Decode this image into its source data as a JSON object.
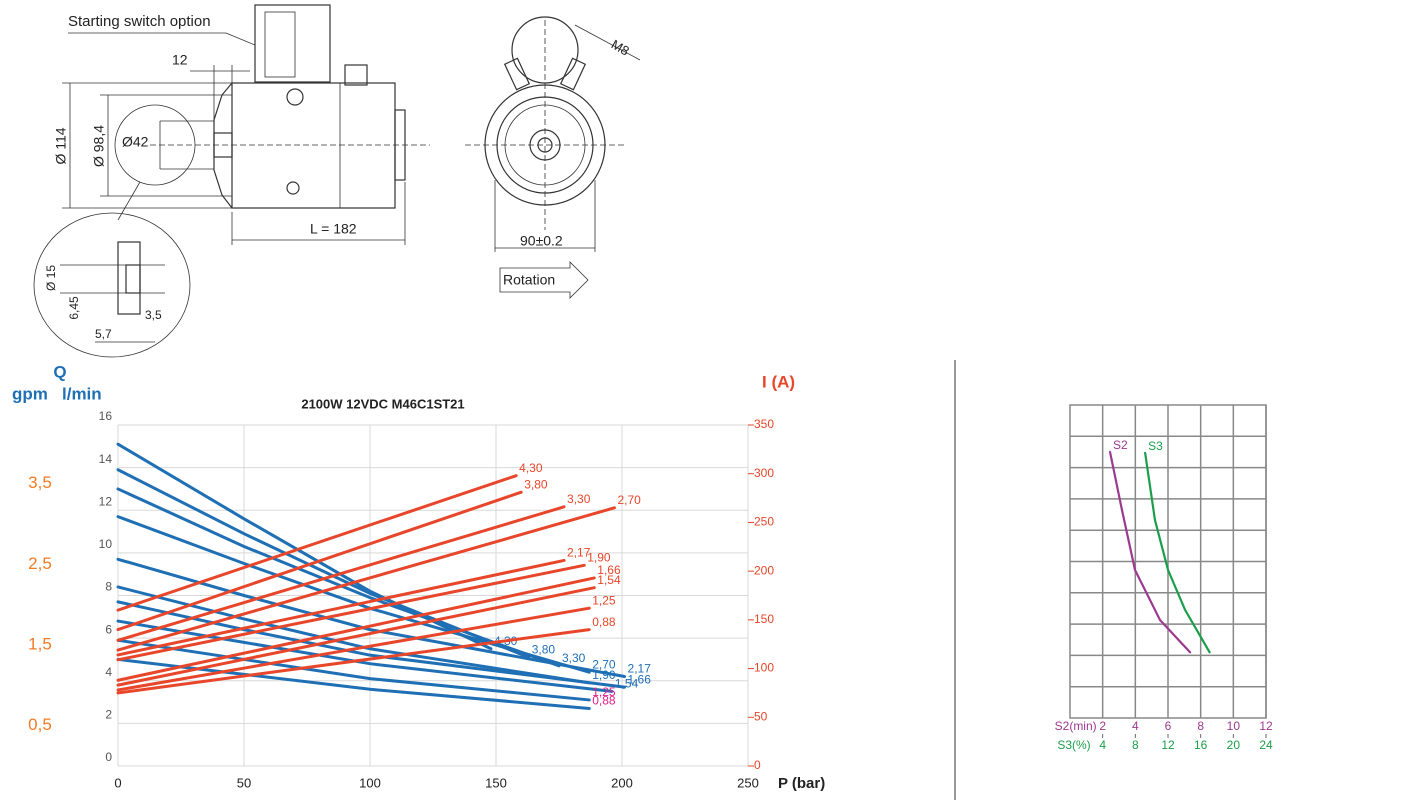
{
  "drawing": {
    "switch_label": "Starting switch option",
    "dim_12": "12",
    "dia_114": "Ø 114",
    "dia_98": "Ø 98,4",
    "dia_42": "Ø42",
    "length": "L = 182",
    "dia_15": "Ø 15",
    "dim_645": "6,45",
    "dim_57": "5,7",
    "dim_35": "3,5",
    "thread": "M8",
    "width": "90±0.2",
    "rotation": "Rotation"
  },
  "chart_data": [
    {
      "type": "line",
      "title": "2100W 12VDC M46C1ST21",
      "x_label": "P (bar)",
      "y_label_top": "Q",
      "y3_label": "gpm",
      "y_label": "l/min",
      "y2_label": "I (A)",
      "xlim": [
        0,
        250
      ],
      "xticks": [
        0,
        50,
        100,
        150,
        200,
        250
      ],
      "ylim": [
        0,
        16
      ],
      "yticks": [
        0,
        2,
        4,
        6,
        8,
        10,
        12,
        14,
        16
      ],
      "y2lim": [
        0,
        350
      ],
      "y2ticks": [
        0,
        50,
        100,
        150,
        200,
        250,
        300,
        350
      ],
      "y3lim": [
        0,
        4.227
      ],
      "y3ticks": [
        {
          "value": 0.5,
          "label": "0,5"
        },
        {
          "value": 1.5,
          "label": "1,5"
        },
        {
          "value": 2.5,
          "label": "2,5"
        },
        {
          "value": 3.5,
          "label": "3,5"
        }
      ],
      "grid": true,
      "series": [
        {
          "name": "4,30",
          "color": "#1f6fb5",
          "axis": "y",
          "x": [
            0,
            50,
            100,
            148
          ],
          "values": [
            15.1,
            11.6,
            8.2,
            5.5
          ]
        },
        {
          "name": "3,80",
          "color": "#1f6fb5",
          "axis": "y",
          "x": [
            0,
            50,
            100,
            163
          ],
          "values": [
            13.9,
            10.9,
            8.1,
            5.1
          ]
        },
        {
          "name": "3,30",
          "color": "#1f6fb5",
          "axis": "y",
          "x": [
            0,
            50,
            100,
            175
          ],
          "values": [
            13.0,
            10.3,
            7.9,
            4.7
          ]
        },
        {
          "name": "2,70",
          "color": "#1f6fb5",
          "axis": "y",
          "x": [
            0,
            50,
            100,
            187
          ],
          "values": [
            11.7,
            9.5,
            7.4,
            4.4
          ]
        },
        {
          "name": "2,17",
          "color": "#1f6fb5",
          "axis": "y",
          "x": [
            0,
            50,
            100,
            201
          ],
          "values": [
            9.7,
            8.0,
            6.4,
            4.2
          ]
        },
        {
          "name": "1,90",
          "color": "#1f6fb5",
          "axis": "y",
          "x": [
            0,
            50,
            100,
            187
          ],
          "values": [
            8.4,
            6.9,
            5.5,
            3.9
          ]
        },
        {
          "name": "1,66",
          "color": "#1f6fb5",
          "axis": "y",
          "x": [
            0,
            50,
            100,
            201
          ],
          "values": [
            7.7,
            6.4,
            5.2,
            3.7
          ]
        },
        {
          "name": "1,54",
          "color": "#1f6fb5",
          "axis": "y",
          "x": [
            0,
            50,
            100,
            196
          ],
          "values": [
            6.8,
            5.8,
            4.8,
            3.5
          ]
        },
        {
          "name": "1,25",
          "color": "#1f6fb5",
          "label_color": "#e0218a",
          "axis": "y",
          "x": [
            0,
            50,
            100,
            187
          ],
          "values": [
            5.9,
            5.0,
            4.1,
            3.1
          ]
        },
        {
          "name": "0,88",
          "color": "#1f6fb5",
          "label_color": "#e0218a",
          "axis": "y",
          "x": [
            0,
            50,
            100,
            187
          ],
          "values": [
            5.0,
            4.3,
            3.6,
            2.7
          ]
        },
        {
          "name": "4,30",
          "color": "#e8462a",
          "axis": "y2",
          "x": [
            0,
            158
          ],
          "values": [
            160,
            298
          ]
        },
        {
          "name": "3,80",
          "color": "#e8462a",
          "axis": "y2",
          "x": [
            0,
            160
          ],
          "values": [
            140,
            281
          ]
        },
        {
          "name": "3,30",
          "color": "#e8462a",
          "axis": "y2",
          "x": [
            0,
            177
          ],
          "values": [
            129,
            266
          ]
        },
        {
          "name": "2,70",
          "color": "#e8462a",
          "axis": "y2",
          "x": [
            0,
            197
          ],
          "values": [
            119,
            265
          ]
        },
        {
          "name": "2,17",
          "color": "#e8462a",
          "axis": "y2",
          "x": [
            0,
            177
          ],
          "values": [
            114,
            211
          ]
        },
        {
          "name": "1,90",
          "color": "#e8462a",
          "axis": "y2",
          "x": [
            0,
            185
          ],
          "values": [
            109,
            206
          ]
        },
        {
          "name": "1,66",
          "color": "#e8462a",
          "axis": "y2",
          "x": [
            0,
            189
          ],
          "values": [
            88,
            193
          ]
        },
        {
          "name": "1,54",
          "color": "#e8462a",
          "axis": "y2",
          "x": [
            0,
            189
          ],
          "values": [
            83,
            183
          ]
        },
        {
          "name": "1,25",
          "color": "#e8462a",
          "axis": "y2",
          "x": [
            0,
            187
          ],
          "values": [
            78,
            162
          ]
        },
        {
          "name": "0,88",
          "color": "#e8462a",
          "axis": "y2",
          "x": [
            0,
            187
          ],
          "values": [
            75,
            140
          ]
        }
      ]
    },
    {
      "type": "line",
      "x_label": "S2(min)",
      "x2_label": "S3(%)",
      "xlim": [
        0,
        12
      ],
      "xticks": [
        2,
        4,
        6,
        8,
        10,
        12
      ],
      "x2lim": [
        0,
        24
      ],
      "x2ticks": [
        4,
        8,
        12,
        16,
        20,
        24
      ],
      "ylim": [
        0,
        10
      ],
      "yticks": [
        1,
        2,
        3,
        4,
        5,
        6,
        7,
        8,
        9
      ],
      "ytick_labels": false,
      "grid": true,
      "series": [
        {
          "name": "S2",
          "color": "#9b3a8f",
          "axis": "x",
          "x": [
            2.45,
            3.18,
            3.98,
            5.51,
            7.35
          ],
          "values": [
            8.5,
            6.65,
            4.73,
            3.13,
            2.1
          ]
        },
        {
          "name": "S3",
          "color": "#1a9e4a",
          "axis": "x2",
          "x": [
            9.2,
            10.4,
            12.0,
            14.1,
            17.1
          ],
          "values": [
            8.47,
            6.33,
            4.73,
            3.45,
            2.1
          ]
        }
      ]
    }
  ]
}
